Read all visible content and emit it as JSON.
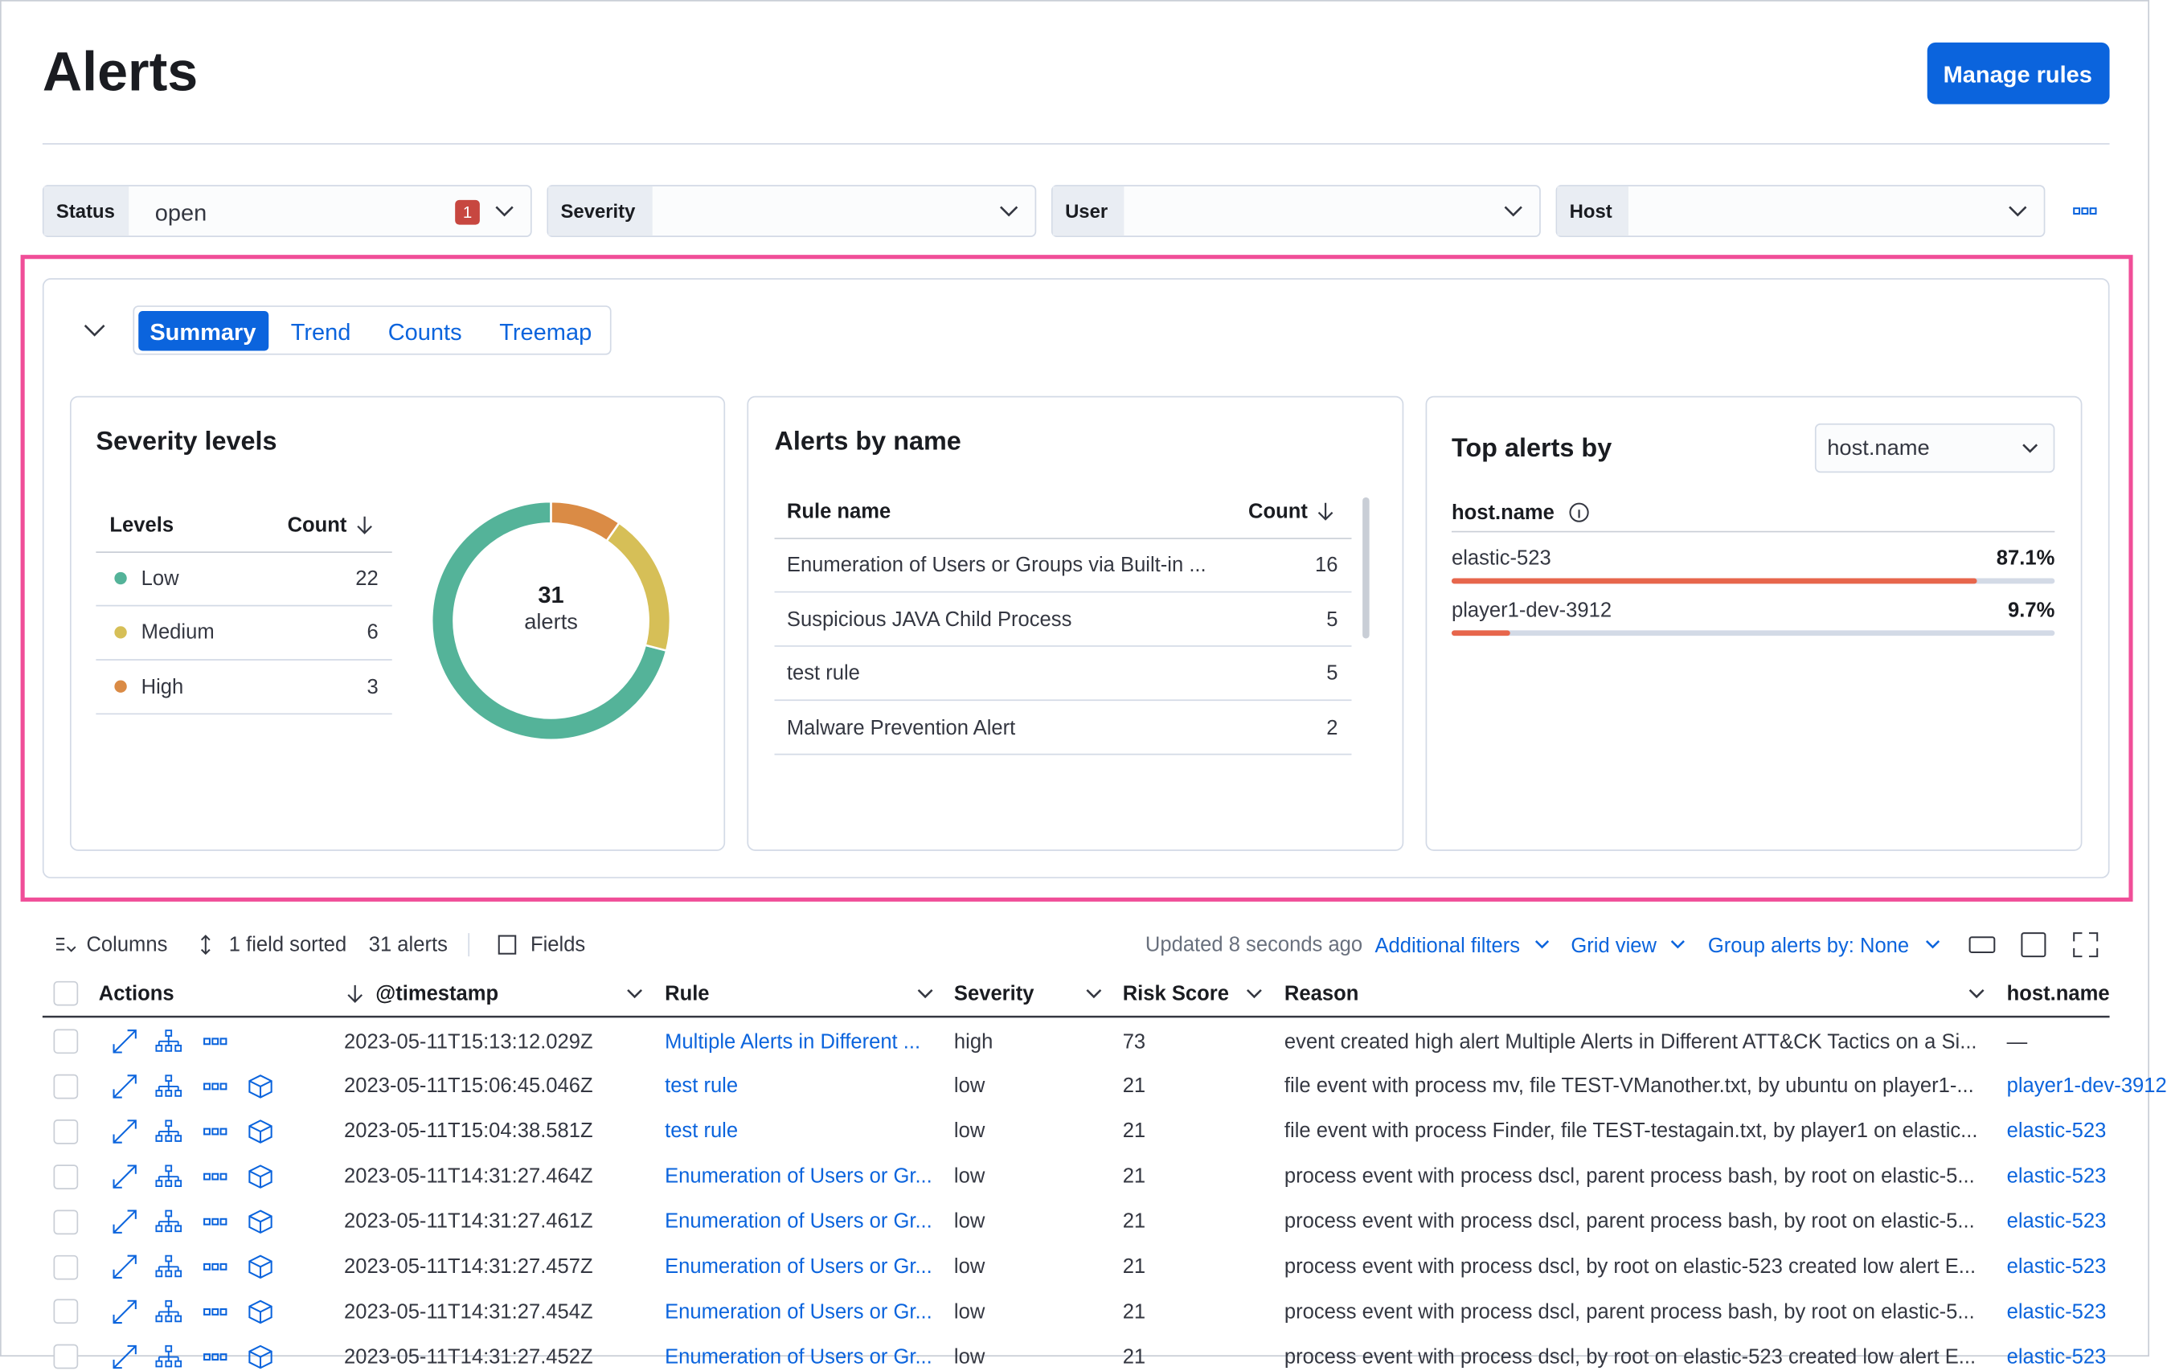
{
  "header": {
    "title": "Alerts",
    "button": "Manage rules"
  },
  "filters": [
    {
      "label": "Status",
      "value": "open",
      "count": 1
    },
    {
      "label": "Severity"
    },
    {
      "label": "User"
    },
    {
      "label": "Host"
    }
  ],
  "tabs": [
    "Summary",
    "Trend",
    "Counts",
    "Treemap"
  ],
  "severity_levels": {
    "title": "Severity levels",
    "columns": [
      "Levels",
      "Count"
    ],
    "rows": [
      {
        "level": "Low",
        "count": 22,
        "color": "#54b399"
      },
      {
        "level": "Medium",
        "count": 6,
        "color": "#d6bf57"
      },
      {
        "level": "High",
        "count": 3,
        "color": "#da8b45"
      }
    ],
    "total": 31,
    "total_label": "alerts"
  },
  "alerts_by_name": {
    "title": "Alerts by name",
    "columns": [
      "Rule name",
      "Count"
    ],
    "rows": [
      {
        "name": "Enumeration of Users or Groups via Built-in ...",
        "count": 16
      },
      {
        "name": "Suspicious JAVA Child Process",
        "count": 5
      },
      {
        "name": "test rule",
        "count": 5
      },
      {
        "name": "Malware Prevention Alert",
        "count": 2
      }
    ]
  },
  "top_alerts": {
    "title": "Top alerts by",
    "field": "host.name",
    "column": "host.name",
    "rows": [
      {
        "name": "elastic-523",
        "value": 87.1,
        "value_label": "87.1%"
      },
      {
        "name": "player1-dev-3912",
        "value": 9.7,
        "value_label": "9.7%"
      }
    ]
  },
  "toolbar": {
    "columns": "Columns",
    "sorted": "1 field sorted",
    "count": "31 alerts",
    "fields": "Fields",
    "updated": "Updated 8 seconds ago",
    "links": [
      "Additional filters",
      "Grid view",
      "Group alerts by: None"
    ]
  },
  "table": {
    "columns": [
      "Actions",
      "@timestamp",
      "Rule",
      "Severity",
      "Risk Score",
      "Reason",
      "host.name"
    ],
    "rows": [
      {
        "timestamp": "2023-05-11T15:13:12.029Z",
        "rule": "Multiple Alerts in Different ...",
        "severity": "high",
        "risk_score": 73,
        "reason": "event created high alert Multiple Alerts in Different ATT&CK Tactics on a Si...",
        "host": "—"
      },
      {
        "timestamp": "2023-05-11T15:06:45.046Z",
        "rule": "test rule",
        "severity": "low",
        "risk_score": 21,
        "reason": "file event with process mv, file TEST-VManother.txt, by ubuntu on player1-...",
        "host": "player1-dev-3912"
      },
      {
        "timestamp": "2023-05-11T15:04:38.581Z",
        "rule": "test rule",
        "severity": "low",
        "risk_score": 21,
        "reason": "file event with process Finder, file TEST-testagain.txt, by player1 on elastic...",
        "host": "elastic-523"
      },
      {
        "timestamp": "2023-05-11T14:31:27.464Z",
        "rule": "Enumeration of Users or Gr...",
        "severity": "low",
        "risk_score": 21,
        "reason": "process event with process dscl, parent process bash, by root on elastic-5...",
        "host": "elastic-523"
      },
      {
        "timestamp": "2023-05-11T14:31:27.461Z",
        "rule": "Enumeration of Users or Gr...",
        "severity": "low",
        "risk_score": 21,
        "reason": "process event with process dscl, parent process bash, by root on elastic-5...",
        "host": "elastic-523"
      },
      {
        "timestamp": "2023-05-11T14:31:27.457Z",
        "rule": "Enumeration of Users or Gr...",
        "severity": "low",
        "risk_score": 21,
        "reason": "process event with process dscl, by root on elastic-523 created low alert E...",
        "host": "elastic-523"
      },
      {
        "timestamp": "2023-05-11T14:31:27.454Z",
        "rule": "Enumeration of Users or Gr...",
        "severity": "low",
        "risk_score": 21,
        "reason": "process event with process dscl, parent process bash, by root on elastic-5...",
        "host": "elastic-523"
      },
      {
        "timestamp": "2023-05-11T14:31:27.452Z",
        "rule": "Enumeration of Users or Gr...",
        "severity": "low",
        "risk_score": 21,
        "reason": "process event with process dscl, by root on elastic-523 created low alert E...",
        "host": "elastic-523"
      }
    ]
  }
}
